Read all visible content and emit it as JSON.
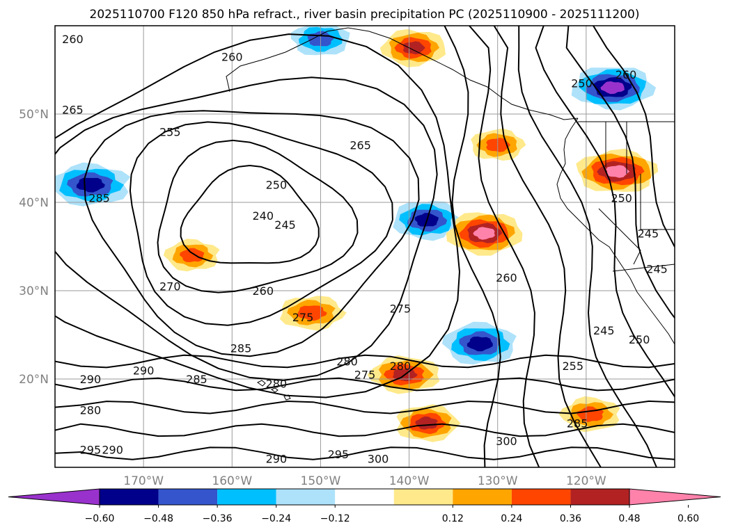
{
  "title": "2025110700 F120 850 hPa refract., river basin precipitation PC (2025110900 - 2025111200)",
  "chart_data": {
    "type": "heatmap",
    "title": "2025110700 F120 850 hPa refract., river basin precipitation PC (2025110900 - 2025111200)",
    "map_extent": {
      "lon": [
        -180,
        -110
      ],
      "lat": [
        10,
        60
      ]
    },
    "x_ticks": [
      "170°W",
      "160°W",
      "150°W",
      "140°W",
      "130°W",
      "120°W"
    ],
    "x_tick_values": [
      -170,
      -160,
      -150,
      -140,
      -130,
      -120
    ],
    "y_ticks": [
      "50°N",
      "40°N",
      "30°N",
      "20°N"
    ],
    "y_tick_values": [
      50,
      40,
      30,
      20
    ],
    "grid": true,
    "colorbar": {
      "orientation": "horizontal",
      "extend": "both",
      "levels": [
        -0.72,
        -0.6,
        -0.48,
        -0.36,
        -0.24,
        -0.12,
        0.12,
        0.24,
        0.36,
        0.48,
        0.6,
        0.72
      ],
      "tick_labels": [
        "−0.60",
        "−0.48",
        "−0.36",
        "−0.24",
        "−0.12",
        "0.12",
        "0.24",
        "0.36",
        "0.48",
        "0.60"
      ],
      "colors": [
        "#9932CC",
        "#00008B",
        "#3455CC",
        "#00BFFF",
        "#ADE2FA",
        "#FFFFFF",
        "#FFE98A",
        "#FFA500",
        "#FF4500",
        "#B22222",
        "#FF82AB"
      ],
      "under_color": "#9932CC",
      "over_color": "#FF82AB"
    },
    "contour_labels": [
      {
        "text": "260",
        "lon": -178,
        "lat": 58.5
      },
      {
        "text": "260",
        "lon": -160,
        "lat": 56.5
      },
      {
        "text": "265",
        "lon": -178,
        "lat": 50.5
      },
      {
        "text": "255",
        "lon": -167,
        "lat": 48
      },
      {
        "text": "250",
        "lon": -155,
        "lat": 42
      },
      {
        "text": "240",
        "lon": -156.5,
        "lat": 38.5
      },
      {
        "text": "245",
        "lon": -154,
        "lat": 37.5
      },
      {
        "text": "285",
        "lon": -175,
        "lat": 40.5
      },
      {
        "text": "265",
        "lon": -145.5,
        "lat": 46.5
      },
      {
        "text": "260",
        "lon": -156.5,
        "lat": 30
      },
      {
        "text": "270",
        "lon": -167,
        "lat": 30.5
      },
      {
        "text": "275",
        "lon": -152,
        "lat": 27
      },
      {
        "text": "275",
        "lon": -141,
        "lat": 28
      },
      {
        "text": "285",
        "lon": -159,
        "lat": 23.5
      },
      {
        "text": "280",
        "lon": -147,
        "lat": 22
      },
      {
        "text": "275",
        "lon": -145,
        "lat": 20.5
      },
      {
        "text": "280",
        "lon": -141,
        "lat": 21.5
      },
      {
        "text": "290",
        "lon": -176,
        "lat": 20
      },
      {
        "text": "290",
        "lon": -170,
        "lat": 21
      },
      {
        "text": "285",
        "lon": -164,
        "lat": 20
      },
      {
        "text": "280",
        "lon": -155,
        "lat": 19.5
      },
      {
        "text": "280",
        "lon": -176,
        "lat": 16.5
      },
      {
        "text": "295",
        "lon": -176,
        "lat": 12
      },
      {
        "text": "290",
        "lon": -173.5,
        "lat": 12
      },
      {
        "text": "290",
        "lon": -155,
        "lat": 11
      },
      {
        "text": "295",
        "lon": -148,
        "lat": 11.5
      },
      {
        "text": "300",
        "lon": -143.5,
        "lat": 11
      },
      {
        "text": "300",
        "lon": -129,
        "lat": 13
      },
      {
        "text": "260",
        "lon": -129,
        "lat": 31.5
      },
      {
        "text": "255",
        "lon": -121.5,
        "lat": 21.5
      },
      {
        "text": "285",
        "lon": -121,
        "lat": 15
      },
      {
        "text": "245",
        "lon": -118,
        "lat": 25.5
      },
      {
        "text": "250",
        "lon": -114,
        "lat": 24.5
      },
      {
        "text": "250",
        "lon": -116,
        "lat": 40.5
      },
      {
        "text": "245",
        "lon": -113,
        "lat": 36.5
      },
      {
        "text": "245",
        "lon": -112,
        "lat": 32.5
      },
      {
        "text": "260",
        "lon": -115.5,
        "lat": 54.5
      },
      {
        "text": "250",
        "lon": -120.5,
        "lat": 53.5
      }
    ],
    "precip_pc_regions": [
      {
        "lon": -176,
        "lat": 42,
        "value": -0.6
      },
      {
        "lon": -138,
        "lat": 38,
        "value": -0.55
      },
      {
        "lon": -132,
        "lat": 24,
        "value": -0.6
      },
      {
        "lon": -117,
        "lat": 53,
        "value": -0.62
      },
      {
        "lon": -150,
        "lat": 58.5,
        "value": -0.45
      },
      {
        "lon": -131.5,
        "lat": 36.5,
        "value": 0.62
      },
      {
        "lon": -116.5,
        "lat": 43.5,
        "value": 0.62
      },
      {
        "lon": -139.5,
        "lat": 57.5,
        "value": 0.5
      },
      {
        "lon": -130,
        "lat": 46.5,
        "value": 0.4
      },
      {
        "lon": -140.5,
        "lat": 20.5,
        "value": 0.5
      },
      {
        "lon": -138,
        "lat": 15,
        "value": 0.5
      },
      {
        "lon": -119.5,
        "lat": 16,
        "value": 0.45
      },
      {
        "lon": -151,
        "lat": 27.5,
        "value": 0.45
      },
      {
        "lon": -164.5,
        "lat": 34,
        "value": 0.4
      }
    ]
  }
}
